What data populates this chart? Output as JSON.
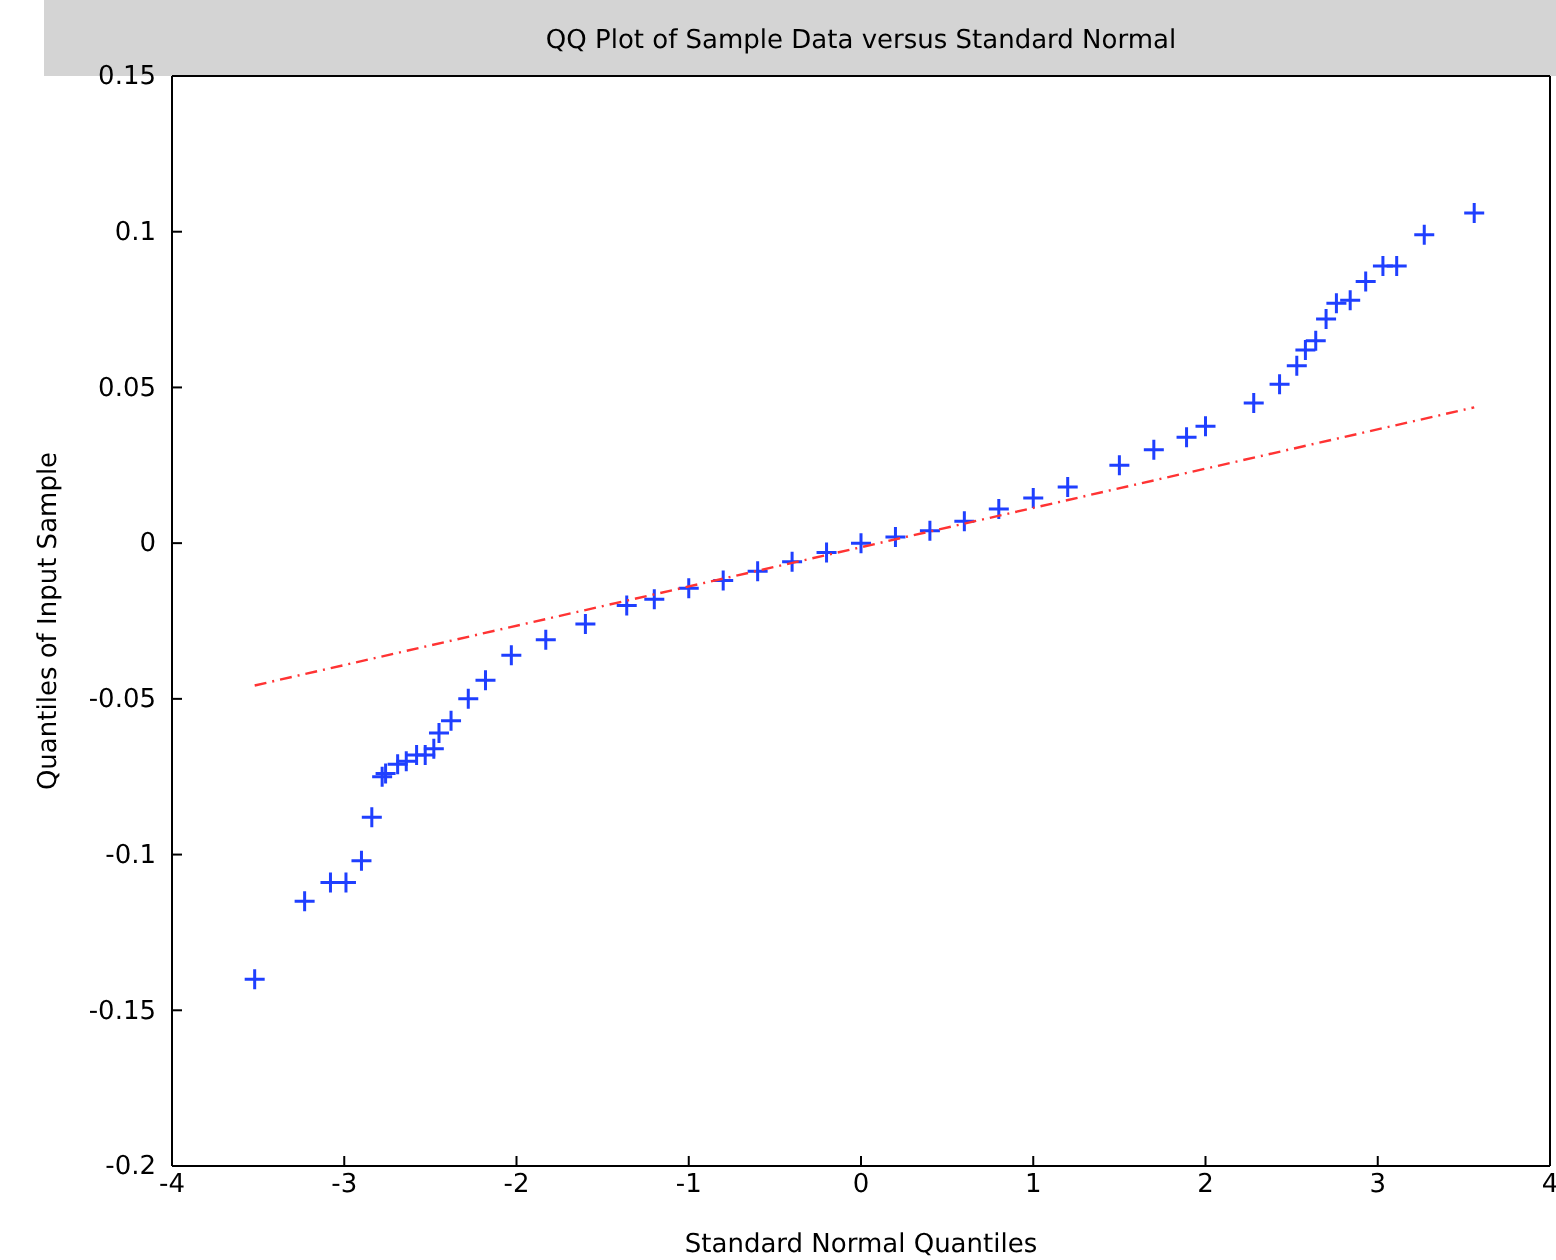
{
  "chart_data": {
    "type": "scatter",
    "title": "QQ Plot of Sample Data versus Standard Normal",
    "xlabel": "Standard Normal Quantiles",
    "ylabel": "Quantiles of Input Sample",
    "series": [
      {
        "color": "#1f3fff",
        "marker": "cross",
        "x": [
          -3.52,
          -3.23,
          -3.08,
          -2.99,
          -2.9,
          -2.84,
          -2.78,
          -2.76,
          -2.69,
          -2.64,
          -2.58,
          -2.53,
          -2.48,
          -2.45,
          -2.38,
          -2.28,
          -2.18,
          -2.03,
          -1.83,
          -1.6,
          -1.36,
          -1.2,
          -1.0,
          -0.8,
          -0.6,
          -0.4,
          -0.2,
          0,
          0.2,
          0.4,
          0.6,
          0.8,
          1.0,
          1.2,
          1.5,
          1.7,
          1.89,
          2.0,
          2.28,
          2.43,
          2.53,
          2.58,
          2.64,
          2.7,
          2.76,
          2.84,
          2.93,
          3.03,
          3.11,
          3.27,
          3.56
        ],
        "values": [
          -0.14,
          -0.115,
          -0.109,
          -0.109,
          -0.102,
          -0.088,
          -0.075,
          -0.074,
          -0.071,
          -0.07,
          -0.068,
          -0.068,
          -0.066,
          -0.061,
          -0.057,
          -0.05,
          -0.044,
          -0.036,
          -0.031,
          -0.026,
          -0.02,
          -0.018,
          -0.0145,
          -0.012,
          -0.009,
          -0.006,
          -0.003,
          0,
          0.002,
          0.004,
          0.007,
          0.011,
          0.0145,
          0.018,
          0.025,
          0.03,
          0.034,
          0.0375,
          0.045,
          0.051,
          0.057,
          0.062,
          0.065,
          0.072,
          0.077,
          0.078,
          0.084,
          0.089,
          0.089,
          0.099,
          0.106
        ]
      },
      {
        "type": "line",
        "color": "#ff3333",
        "line_style": "dashed",
        "x": [
          -3.52,
          3.56
        ],
        "values": [
          -0.0457,
          0.0436
        ]
      }
    ],
    "xlim": [
      -4,
      4
    ],
    "xticks": [
      -4,
      -3,
      -2,
      -1,
      0,
      1,
      2,
      3,
      4
    ],
    "ylim": [
      -0.2,
      0.15
    ],
    "yticks": [
      -0.2,
      -0.15,
      -0.1,
      -0.05,
      0,
      0.05,
      0.1,
      0.15
    ],
    "grid": false
  }
}
